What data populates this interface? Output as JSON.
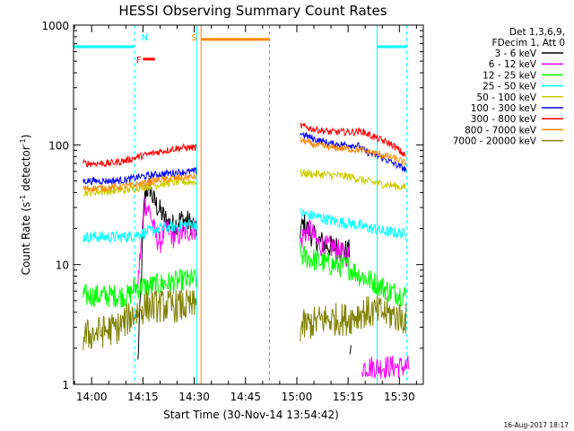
{
  "chart_data": {
    "type": "line",
    "title": "HESSI Observing Summary Count Rates",
    "xlabel": "Start Time (30-Nov-14 13:54:42)",
    "ylabel_main": "Count Rate (s",
    "ylabel_sup1": "-1",
    "ylabel_mid": " detector",
    "ylabel_sup2": "-1",
    "ylabel_end": ")",
    "y_scale": "log",
    "ylim": [
      1,
      1000
    ],
    "xlim_minutes": [
      -5.3,
      97.0
    ],
    "x_ticks": [
      {
        "m": 0,
        "label": "14:00"
      },
      {
        "m": 15,
        "label": "14:15"
      },
      {
        "m": 30,
        "label": "14:30"
      },
      {
        "m": 45,
        "label": "14:45"
      },
      {
        "m": 60,
        "label": "15:00"
      },
      {
        "m": 75,
        "label": "15:15"
      },
      {
        "m": 90,
        "label": "15:30"
      }
    ],
    "y_ticks": [
      {
        "v": 1,
        "label": "1"
      },
      {
        "v": 10,
        "label": "10"
      },
      {
        "v": 100,
        "label": "100"
      },
      {
        "v": 1000,
        "label": "1000"
      }
    ],
    "legend": {
      "header": [
        "Det 1,3,6,9,",
        "FDecim 1, Att 0"
      ],
      "position": "right"
    },
    "series": [
      {
        "name": "3 - 6 keV",
        "color": "#000000",
        "seg1": [
          [
            13.5,
            1.5
          ],
          [
            15.5,
            40
          ],
          [
            17,
            45
          ],
          [
            18,
            35
          ],
          [
            20,
            28
          ],
          [
            22,
            23
          ],
          [
            24,
            21
          ],
          [
            26,
            24
          ],
          [
            28,
            23
          ],
          [
            30,
            21
          ],
          [
            30.7,
            17
          ]
        ],
        "seg2": [
          [
            61,
            19
          ],
          [
            62,
            22
          ],
          [
            64,
            18
          ],
          [
            66,
            16
          ],
          [
            68,
            15
          ],
          [
            70,
            14
          ],
          [
            72,
            14
          ],
          [
            74,
            13
          ],
          [
            75.5,
            13
          ]
        ],
        "seg3": [
          [
            75.5,
            2
          ],
          [
            76,
            1.6
          ]
        ]
      },
      {
        "name": "6 - 12 keV",
        "color": "#ff00ff",
        "seg1": [
          [
            13.5,
            7
          ],
          [
            15.5,
            33
          ],
          [
            17,
            28
          ],
          [
            18.5,
            18
          ],
          [
            20,
            15
          ],
          [
            21,
            18
          ],
          [
            22,
            20
          ],
          [
            24,
            17
          ],
          [
            26,
            18
          ],
          [
            28,
            19
          ],
          [
            30,
            20
          ],
          [
            30.7,
            20
          ]
        ],
        "seg2": [
          [
            61,
            15
          ],
          [
            62,
            18
          ],
          [
            64,
            20
          ],
          [
            66,
            15
          ],
          [
            68,
            14
          ],
          [
            70,
            14
          ],
          [
            72,
            13
          ],
          [
            74,
            12
          ],
          [
            75.5,
            12
          ]
        ],
        "seg3": [
          [
            79,
            1.4
          ],
          [
            93,
            1.4
          ]
        ]
      },
      {
        "name": "12 - 25 keV",
        "color": "#00ff00",
        "seg1": [
          [
            -2.5,
            5.5
          ],
          [
            11,
            5.5
          ],
          [
            12.5,
            6.5
          ],
          [
            16,
            6.5
          ],
          [
            22,
            7
          ],
          [
            30,
            7.5
          ],
          [
            30.7,
            7.5
          ]
        ],
        "seg2": [
          [
            61,
            12
          ],
          [
            65,
            11
          ],
          [
            70,
            10
          ],
          [
            75,
            9.5
          ],
          [
            79,
            8
          ],
          [
            83,
            7
          ],
          [
            87,
            6
          ],
          [
            92,
            5.5
          ]
        ]
      },
      {
        "name": "25 - 50 keV",
        "color": "#00ffff",
        "seg1": [
          [
            -2.5,
            17
          ],
          [
            10,
            17
          ],
          [
            14,
            18
          ],
          [
            20,
            20
          ],
          [
            25,
            21
          ],
          [
            30,
            22
          ],
          [
            30.7,
            22
          ]
        ],
        "seg2": [
          [
            61,
            27
          ],
          [
            66,
            25
          ],
          [
            71,
            23
          ],
          [
            76,
            22
          ],
          [
            79,
            21
          ],
          [
            85,
            19
          ],
          [
            92,
            18
          ]
        ]
      },
      {
        "name": "50 - 100 keV",
        "color": "#cccc00",
        "seg1": [
          [
            -2.5,
            40
          ],
          [
            5,
            41
          ],
          [
            10,
            42
          ],
          [
            14,
            44
          ],
          [
            20,
            47
          ],
          [
            25,
            49
          ],
          [
            30,
            49
          ],
          [
            30.7,
            49
          ]
        ],
        "seg2": [
          [
            61,
            58
          ],
          [
            65,
            57
          ],
          [
            70,
            56
          ],
          [
            76,
            54
          ],
          [
            80,
            50
          ],
          [
            85,
            47
          ],
          [
            92,
            44
          ]
        ]
      },
      {
        "name": "100 - 300 keV",
        "color": "#0000ff",
        "seg1": [
          [
            -2.5,
            50
          ],
          [
            5,
            50
          ],
          [
            10,
            51
          ],
          [
            14,
            54
          ],
          [
            20,
            57
          ],
          [
            25,
            59
          ],
          [
            30,
            60
          ],
          [
            30.7,
            60
          ]
        ],
        "seg2": [
          [
            61,
            125
          ],
          [
            65,
            112
          ],
          [
            70,
            102
          ],
          [
            76,
            100
          ],
          [
            78,
            98
          ],
          [
            80,
            88
          ],
          [
            85,
            78
          ],
          [
            92,
            62
          ]
        ]
      },
      {
        "name": "300 - 800 keV",
        "color": "#ff0000",
        "seg1": [
          [
            -2.5,
            70
          ],
          [
            5,
            70
          ],
          [
            10,
            74
          ],
          [
            14,
            80
          ],
          [
            20,
            88
          ],
          [
            25,
            94
          ],
          [
            30,
            95
          ],
          [
            30.7,
            95
          ]
        ],
        "seg2": [
          [
            61,
            145
          ],
          [
            65,
            135
          ],
          [
            70,
            128
          ],
          [
            76,
            128
          ],
          [
            79,
            130
          ],
          [
            83,
            115
          ],
          [
            88,
            100
          ],
          [
            92,
            80
          ]
        ]
      },
      {
        "name": "800 - 7000 keV",
        "color": "#ff8800",
        "seg1": [
          [
            -2.5,
            43
          ],
          [
            5,
            44
          ],
          [
            10,
            45
          ],
          [
            14,
            47
          ],
          [
            20,
            51
          ],
          [
            25,
            53
          ],
          [
            30,
            54
          ],
          [
            30.7,
            54
          ]
        ],
        "seg2": [
          [
            61,
            110
          ],
          [
            65,
            100
          ],
          [
            70,
            95
          ],
          [
            76,
            92
          ],
          [
            79,
            90
          ],
          [
            83,
            85
          ],
          [
            88,
            78
          ],
          [
            92,
            70
          ]
        ]
      },
      {
        "name": "7000 - 20000 keV",
        "color": "#808000",
        "seg1": [
          [
            -2.5,
            2.5
          ],
          [
            8,
            3
          ],
          [
            12,
            3.8
          ],
          [
            16,
            4.5
          ],
          [
            22,
            4.5
          ],
          [
            30,
            4.5
          ],
          [
            30.7,
            4.5
          ]
        ],
        "seg2": [
          [
            61,
            3
          ],
          [
            68,
            3.5
          ],
          [
            75,
            3.5
          ],
          [
            79,
            4
          ],
          [
            85,
            4
          ],
          [
            92,
            3.5
          ]
        ]
      }
    ],
    "annotations": [
      {
        "label": "N",
        "color": "#00ffff"
      },
      {
        "label": "F",
        "color": "#ff0000"
      },
      {
        "label": "S",
        "color": "#ff8800"
      }
    ],
    "night_intervals": [
      [
        -5.3,
        12.5
      ],
      [
        83.5,
        92.2
      ]
    ],
    "flare_interval": [
      15.0,
      18.5
    ],
    "saa_interval": [
      32.0,
      52.0
    ]
  },
  "footer_stamp": "16-Aug-2017 18:17"
}
